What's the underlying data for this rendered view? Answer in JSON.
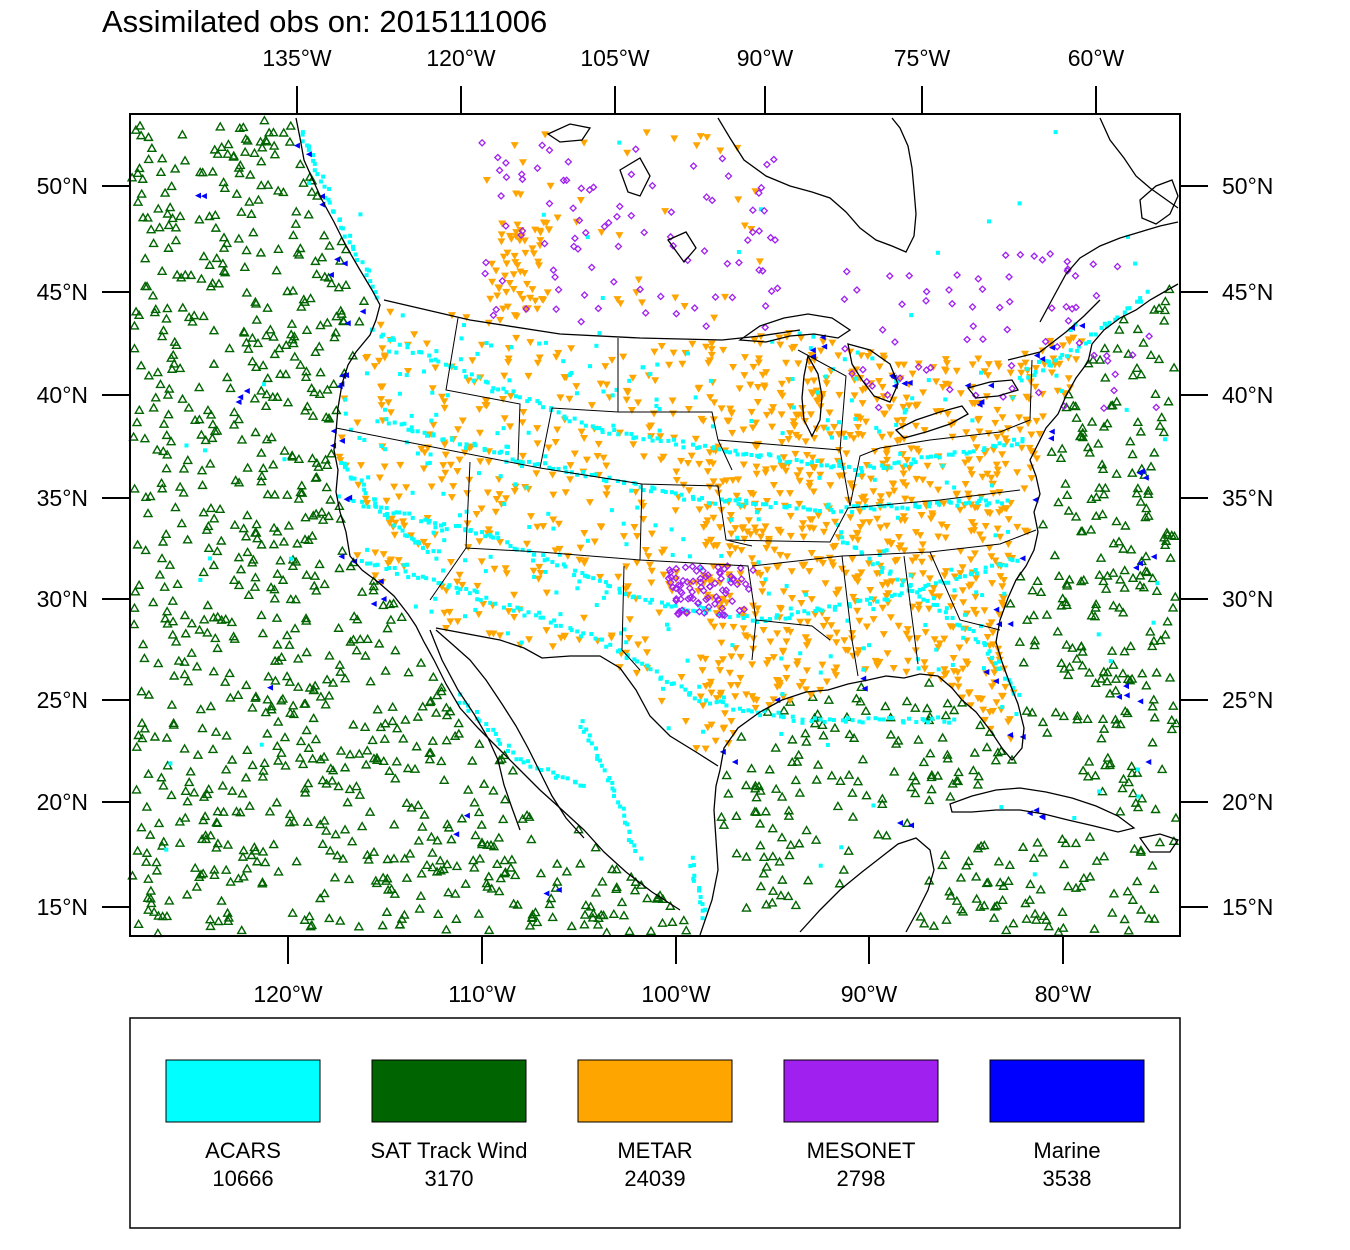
{
  "title": "Assimilated obs on: 2015111006",
  "map": {
    "top_lon_labels": [
      "135°W",
      "120°W",
      "105°W",
      "90°W",
      "75°W",
      "60°W"
    ],
    "bottom_lon_labels": [
      "120°W",
      "110°W",
      "100°W",
      "90°W",
      "80°W"
    ],
    "lat_labels": [
      "50°N",
      "45°N",
      "40°N",
      "35°N",
      "30°N",
      "25°N",
      "20°N",
      "15°N"
    ]
  },
  "legend": [
    {
      "name": "ACARS",
      "count": "10666",
      "color": "#00ffff"
    },
    {
      "name": "SAT Track Wind",
      "count": "3170",
      "color": "#006400"
    },
    {
      "name": "METAR",
      "count": "24039",
      "color": "#ffa500"
    },
    {
      "name": "MESONET",
      "count": "2798",
      "color": "#a020f0"
    },
    {
      "name": "Marine",
      "count": "3538",
      "color": "#0000ff"
    }
  ]
}
